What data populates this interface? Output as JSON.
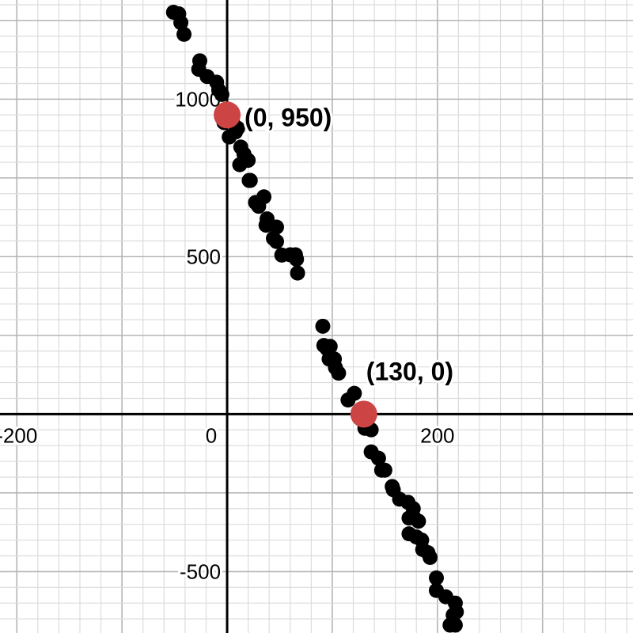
{
  "chart_data": {
    "type": "scatter",
    "title": "",
    "xlabel": "",
    "ylabel": "",
    "xlim": [
      -216,
      386
    ],
    "ylim": [
      -695,
      1315
    ],
    "grid": true,
    "grid_minor_x": 20,
    "grid_minor_y": 50,
    "grid_major_x": 100,
    "grid_major_y": 250,
    "x_tick_labels": [
      {
        "value": -200,
        "label": "-200"
      },
      {
        "value": 0,
        "label": "0"
      },
      {
        "value": 200,
        "label": "200"
      }
    ],
    "y_tick_labels": [
      {
        "value": 1000,
        "label": "1000"
      },
      {
        "value": 500,
        "label": "500"
      },
      {
        "value": -500,
        "label": "-500"
      }
    ],
    "colors": {
      "points": "#000000",
      "highlight": "#cc4444",
      "grid_minor": "#dcdcdc",
      "grid_major": "#b4b4b4",
      "axis": "#000000"
    },
    "series": [
      {
        "points": [
          [
            -51,
            1276
          ],
          [
            -46,
            1271
          ],
          [
            -44,
            1243
          ],
          [
            -41,
            1206
          ],
          [
            -26,
            1122
          ],
          [
            -27,
            1095
          ],
          [
            -19,
            1072
          ],
          [
            -10,
            1054
          ],
          [
            -8,
            1029
          ],
          [
            -5,
            1015
          ],
          [
            -3,
            926
          ],
          [
            5,
            932
          ],
          [
            8,
            896
          ],
          [
            10,
            908
          ],
          [
            2,
            880
          ],
          [
            13,
            848
          ],
          [
            16,
            826
          ],
          [
            20,
            806
          ],
          [
            12,
            792
          ],
          [
            22,
            742
          ],
          [
            21,
            742
          ],
          [
            35,
            690
          ],
          [
            27,
            672
          ],
          [
            30,
            660
          ],
          [
            38,
            620
          ],
          [
            37,
            600
          ],
          [
            47,
            594
          ],
          [
            44,
            558
          ],
          [
            47,
            548
          ],
          [
            52,
            505
          ],
          [
            60,
            506
          ],
          [
            65,
            506
          ],
          [
            66,
            492
          ],
          [
            67,
            448
          ],
          [
            91,
            279
          ],
          [
            92,
            218
          ],
          [
            98,
            215
          ],
          [
            95,
            208
          ],
          [
            102,
            175
          ],
          [
            97,
            175
          ],
          [
            103,
            148
          ],
          [
            106,
            130
          ],
          [
            121,
            66
          ],
          [
            115,
            45
          ],
          [
            126,
            10
          ],
          [
            128,
            5
          ],
          [
            131,
            -45
          ],
          [
            137,
            -50
          ],
          [
            137,
            -120
          ],
          [
            144,
            -140
          ],
          [
            147,
            -178
          ],
          [
            150,
            -178
          ],
          [
            157,
            -230
          ],
          [
            158,
            -240
          ],
          [
            164,
            -270
          ],
          [
            172,
            -280
          ],
          [
            177,
            -300
          ],
          [
            173,
            -330
          ],
          [
            178,
            -330
          ],
          [
            182,
            -340
          ],
          [
            173,
            -380
          ],
          [
            180,
            -390
          ],
          [
            185,
            -400
          ],
          [
            186,
            -430
          ],
          [
            191,
            -440
          ],
          [
            193,
            -455
          ],
          [
            199,
            -520
          ],
          [
            199,
            -560
          ],
          [
            208,
            -580
          ],
          [
            217,
            -600
          ],
          [
            218,
            -628
          ],
          [
            215,
            -638
          ],
          [
            212,
            -670
          ],
          [
            217,
            -670
          ]
        ]
      }
    ],
    "highlights": [
      {
        "x": 0,
        "y": 950,
        "label": "(0, 950)"
      },
      {
        "x": 130,
        "y": 0,
        "label": "(130, 0)"
      }
    ]
  }
}
